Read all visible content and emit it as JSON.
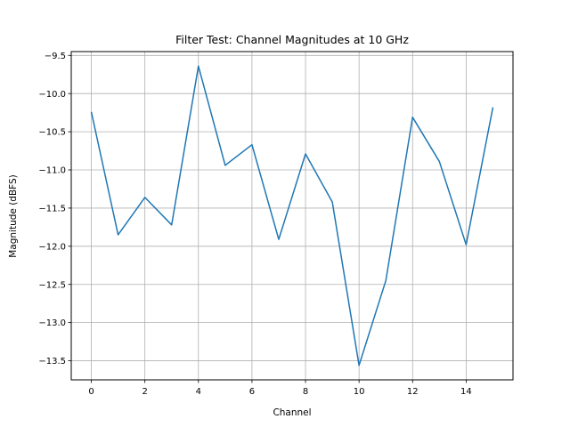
{
  "chart_data": {
    "type": "line",
    "title": "Filter Test: Channel Magnitudes at 10 GHz",
    "xlabel": "Channel",
    "ylabel": "Magnitude (dBFS)",
    "xlim": [
      -0.75,
      15.75
    ],
    "ylim": [
      -13.75,
      -9.45
    ],
    "xticks": [
      0,
      2,
      4,
      6,
      8,
      10,
      12,
      14
    ],
    "yticks": [
      -9.5,
      -10.0,
      -10.5,
      -11.0,
      -11.5,
      -12.0,
      -12.5,
      -13.0,
      -13.5
    ],
    "xtick_labels": [
      "0",
      "2",
      "4",
      "6",
      "8",
      "10",
      "12",
      "14"
    ],
    "ytick_labels": [
      "−9.5",
      "−10.0",
      "−10.5",
      "−11.0",
      "−11.5",
      "−12.0",
      "−12.5",
      "−13.0",
      "−13.5"
    ],
    "grid": true,
    "series": [
      {
        "color": "#1f77b4",
        "x": [
          0,
          1,
          2,
          3,
          4,
          5,
          6,
          7,
          8,
          9,
          10,
          11,
          12,
          13,
          14,
          15
        ],
        "y": [
          -10.24,
          -11.85,
          -11.36,
          -11.72,
          -9.64,
          -10.94,
          -10.67,
          -11.91,
          -10.79,
          -11.42,
          -13.56,
          -12.45,
          -10.31,
          -10.89,
          -11.98,
          -10.18
        ]
      }
    ]
  }
}
